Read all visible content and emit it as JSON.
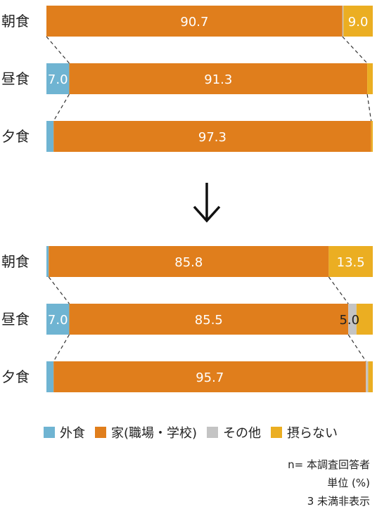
{
  "chart_data": {
    "type": "bar",
    "orientation": "horizontal",
    "stacked": true,
    "unit": "%",
    "series_colors": {
      "外食": "#6fb4d2",
      "家(職場・学校)": "#e07e1c",
      "その他": "#c4c4c4",
      "摂らない": "#ebae22"
    },
    "label_threshold": 3,
    "panels": [
      {
        "name": "before",
        "rows": [
          {
            "label": "朝食",
            "values": {
              "外食": 0,
              "家(職場・学校)": 90.7,
              "その他": 0.3,
              "摂らない": 9.0
            }
          },
          {
            "label": "昼食",
            "values": {
              "外食": 7.0,
              "家(職場・学校)": 91.3,
              "その他": 0,
              "摂らない": 1.7
            }
          },
          {
            "label": "夕食",
            "values": {
              "外食": 2.2,
              "家(職場・学校)": 97.3,
              "その他": 0,
              "摂らない": 0.5
            }
          }
        ]
      },
      {
        "name": "after",
        "rows": [
          {
            "label": "朝食",
            "values": {
              "外食": 0.7,
              "家(職場・学校)": 85.8,
              "その他": 0,
              "摂らない": 13.5
            }
          },
          {
            "label": "昼食",
            "values": {
              "外食": 7.0,
              "家(職場・学校)": 85.5,
              "その他": 2.5,
              "摂らない": 5.0
            }
          },
          {
            "label": "夕食",
            "values": {
              "外食": 2.2,
              "家(職場・学校)": 95.7,
              "その他": 0.7,
              "摂らない": 1.4
            }
          }
        ]
      }
    ]
  },
  "legend": [
    {
      "label": "外食",
      "color": "#6fb4d2"
    },
    {
      "label": "家(職場・学校)",
      "color": "#e07e1c"
    },
    {
      "label": "その他",
      "color": "#c4c4c4"
    },
    {
      "label": "摂らない",
      "color": "#ebae22"
    }
  ],
  "notes": {
    "n": "n= 本調査回答者",
    "unit": "単位 (%)",
    "threshold": "3 未満非表示"
  }
}
